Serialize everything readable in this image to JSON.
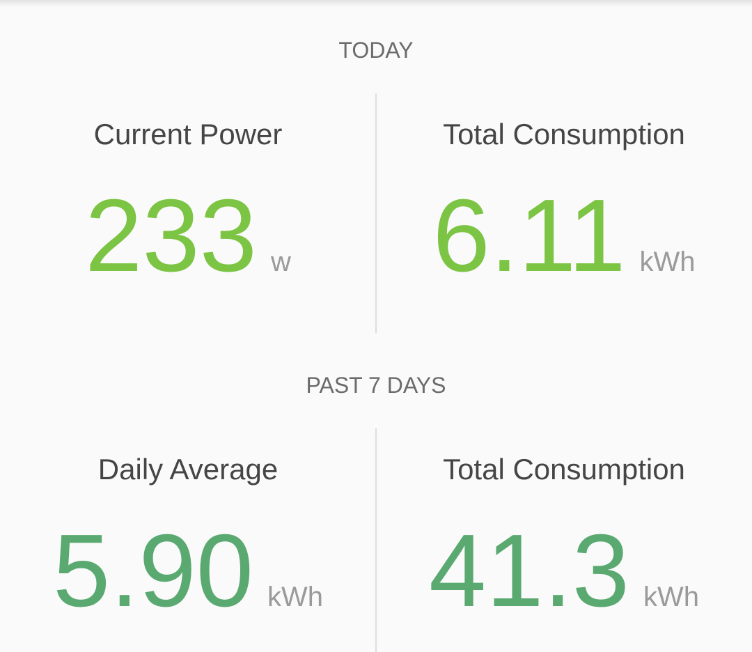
{
  "sections": [
    {
      "title": "TODAY",
      "metrics": [
        {
          "label": "Current Power",
          "value": "233",
          "unit": "w"
        },
        {
          "label": "Total Consumption",
          "value": "6.11",
          "unit": "kWh"
        }
      ]
    },
    {
      "title": "PAST 7 DAYS",
      "metrics": [
        {
          "label": "Daily Average",
          "value": "5.90",
          "unit": "kWh"
        },
        {
          "label": "Total Consumption",
          "value": "41.3",
          "unit": "kWh"
        }
      ]
    }
  ]
}
